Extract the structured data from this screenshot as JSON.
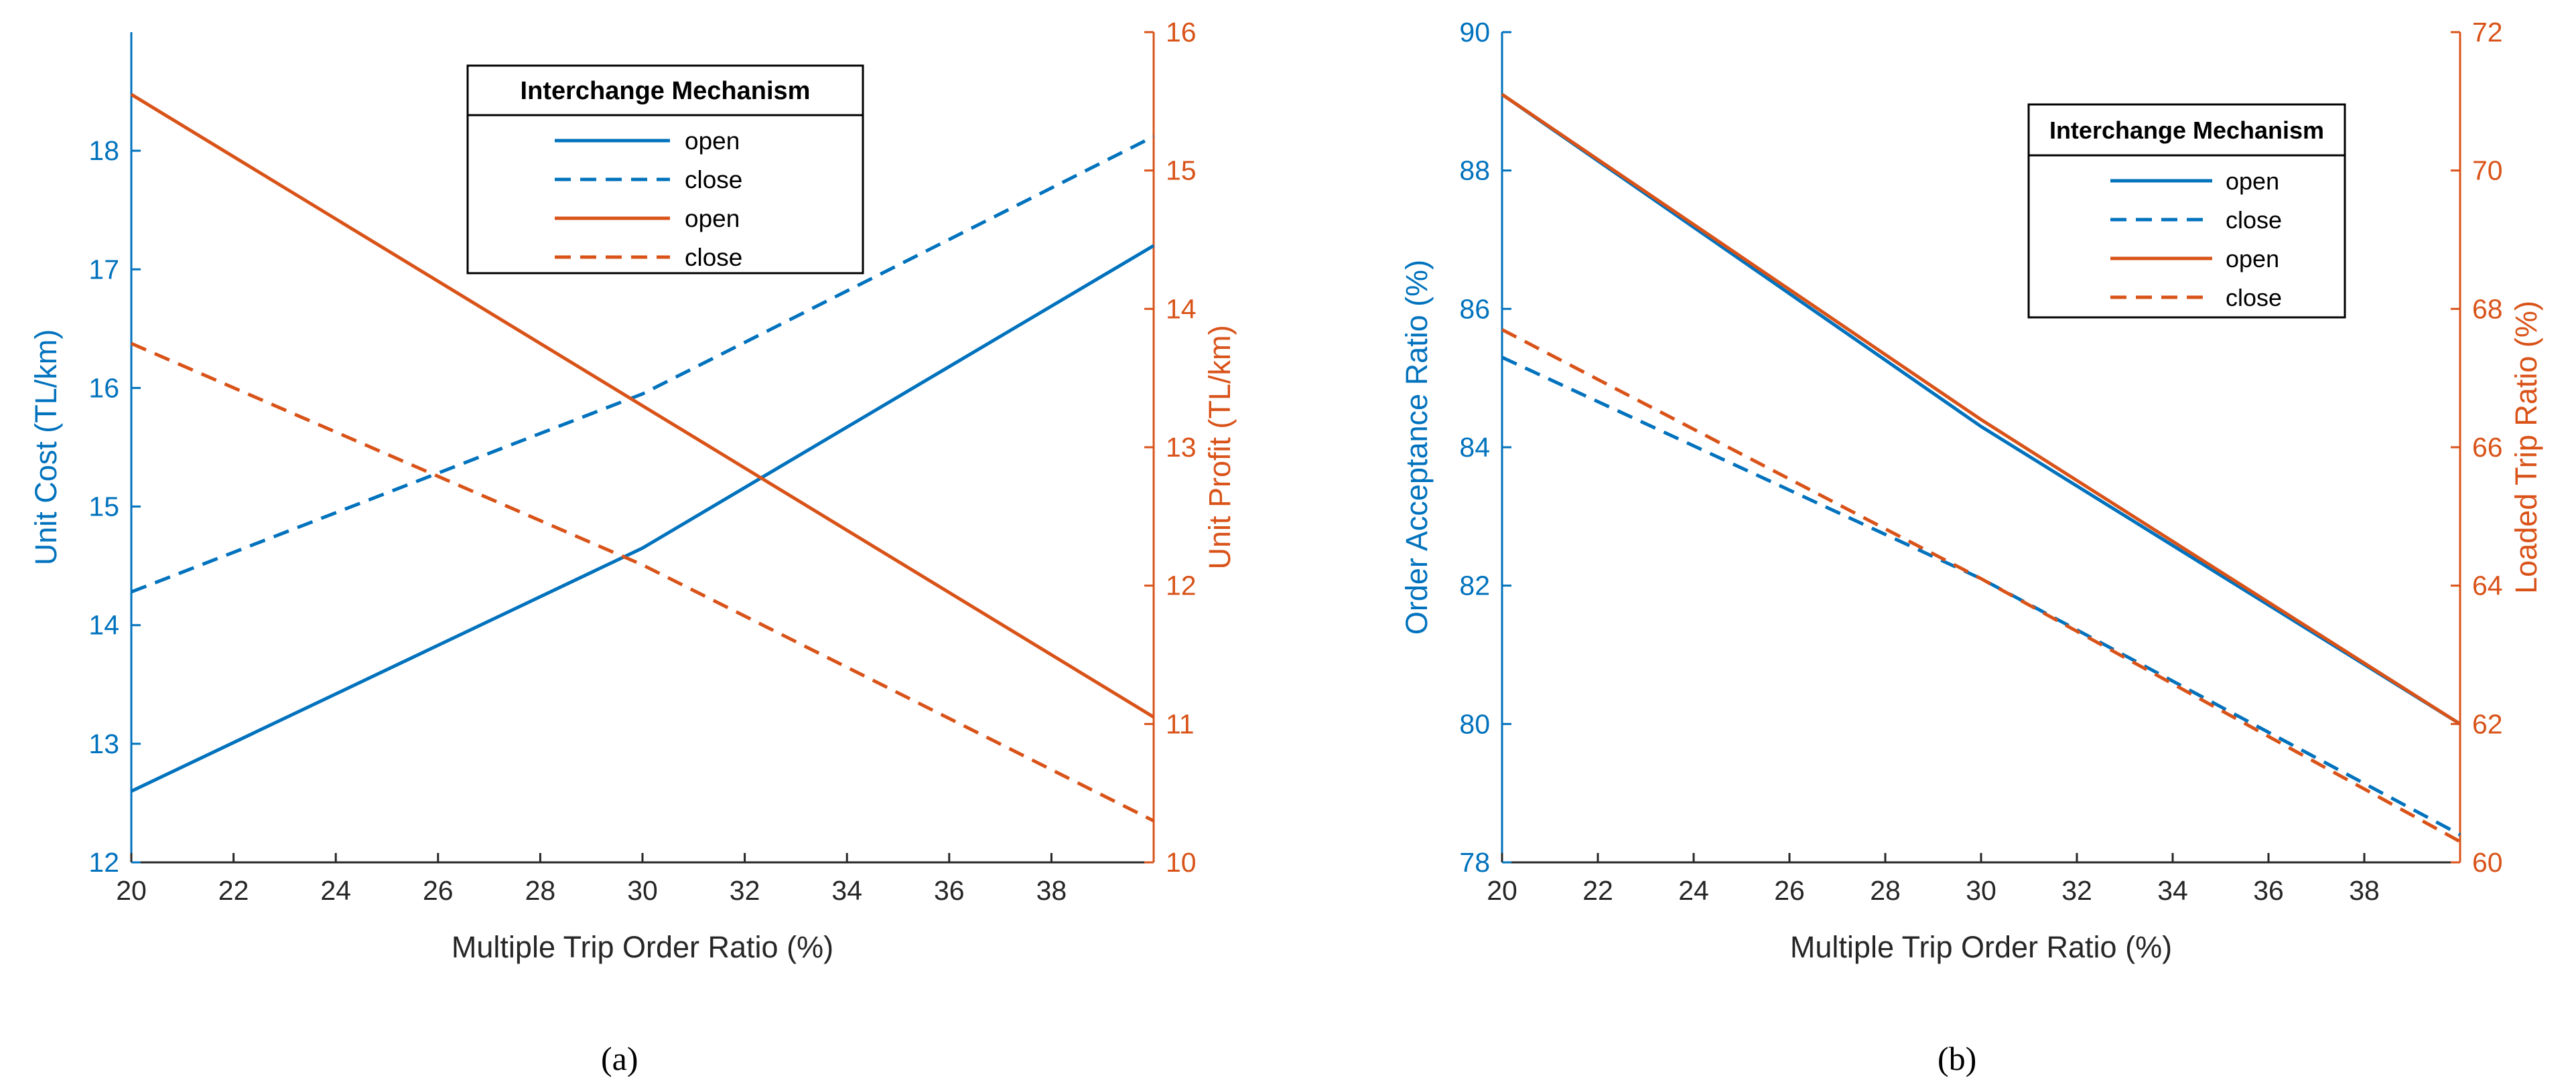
{
  "colors": {
    "blue": "#0072BD",
    "orange": "#D95319",
    "axis": "#262626",
    "legend_border": "#000000"
  },
  "chart_data": [
    {
      "panel": "(a)",
      "type": "line",
      "xlabel": "Multiple Trip Order Ratio (%)",
      "ylabel_left": "Unit Cost (TL/km)",
      "ylabel_right": "Unit Profit (TL/km)",
      "xlim": [
        20,
        40
      ],
      "xticks": [
        20,
        22,
        24,
        26,
        28,
        30,
        32,
        34,
        36,
        38
      ],
      "ylim_left": [
        12,
        19
      ],
      "yticks_left": [
        12,
        13,
        14,
        15,
        16,
        17,
        18
      ],
      "ylim_right": [
        10,
        16
      ],
      "yticks_right": [
        10,
        11,
        12,
        13,
        14,
        15,
        16
      ],
      "legend": {
        "title": "Interchange Mechanism",
        "position": "top-center",
        "entries": [
          "open",
          "close",
          "open",
          "close"
        ]
      },
      "series": [
        {
          "name": "open",
          "axis": "left",
          "color": "blue",
          "dash": false,
          "x": [
            20,
            30,
            40
          ],
          "y": [
            12.6,
            14.65,
            17.2
          ]
        },
        {
          "name": "close",
          "axis": "left",
          "color": "blue",
          "dash": true,
          "x": [
            20,
            30,
            40
          ],
          "y": [
            14.28,
            15.95,
            18.12
          ]
        },
        {
          "name": "open",
          "axis": "right",
          "color": "orange",
          "dash": false,
          "x": [
            20,
            30,
            40
          ],
          "y": [
            15.55,
            13.3,
            11.05
          ]
        },
        {
          "name": "close",
          "axis": "right",
          "color": "orange",
          "dash": true,
          "x": [
            20,
            30,
            40
          ],
          "y": [
            13.75,
            12.15,
            10.3
          ]
        }
      ]
    },
    {
      "panel": "(b)",
      "type": "line",
      "xlabel": "Multiple Trip Order Ratio (%)",
      "ylabel_left": "Order Acceptance Ratio (%)",
      "ylabel_right": "Loaded Trip Ratio (%)",
      "xlim": [
        20,
        40
      ],
      "xticks": [
        20,
        22,
        24,
        26,
        28,
        30,
        32,
        34,
        36,
        38
      ],
      "ylim_left": [
        78,
        90
      ],
      "yticks_left": [
        78,
        80,
        82,
        84,
        86,
        88,
        90
      ],
      "ylim_right": [
        60,
        72
      ],
      "yticks_right": [
        60,
        62,
        64,
        66,
        68,
        70,
        72
      ],
      "legend": {
        "title": "Interchange Mechanism",
        "position": "top-right",
        "entries": [
          "open",
          "close",
          "open",
          "close"
        ]
      },
      "series": [
        {
          "name": "open",
          "axis": "left",
          "color": "blue",
          "dash": false,
          "x": [
            20,
            30,
            40
          ],
          "y": [
            89.1,
            84.3,
            80.0
          ]
        },
        {
          "name": "close",
          "axis": "left",
          "color": "blue",
          "dash": true,
          "x": [
            20,
            30,
            40
          ],
          "y": [
            85.3,
            82.1,
            78.4
          ]
        },
        {
          "name": "open",
          "axis": "right",
          "color": "orange",
          "dash": false,
          "x": [
            20,
            30,
            40
          ],
          "y": [
            71.1,
            66.4,
            62.0
          ]
        },
        {
          "name": "close",
          "axis": "right",
          "color": "orange",
          "dash": true,
          "x": [
            20,
            30,
            40
          ],
          "y": [
            67.7,
            64.1,
            60.3
          ]
        }
      ]
    }
  ]
}
